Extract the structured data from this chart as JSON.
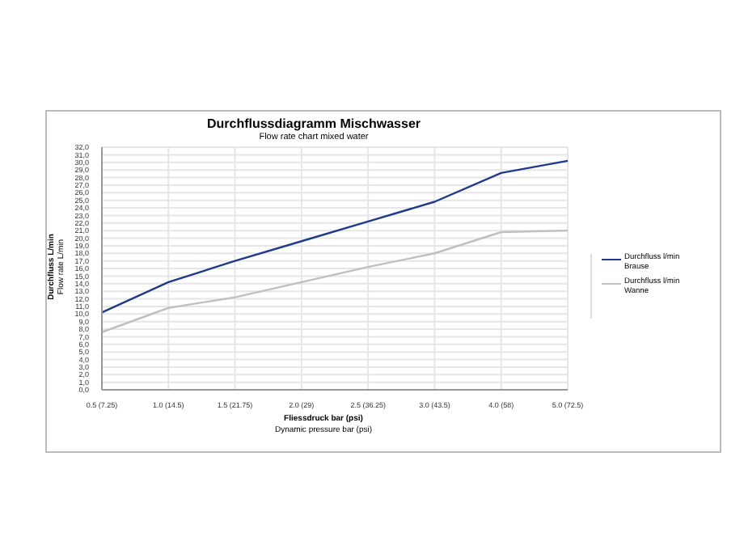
{
  "chart_data": {
    "type": "line",
    "title": "Durchflussdiagramm Mischwasser",
    "subtitle": "Flow rate chart mixed water",
    "xlabel": "Fliessdruck bar (psi)\nDynamic pressure bar (psi)",
    "ylabel": "Durchfluss L/min\nFlow rate L/min",
    "categories": [
      "0.5 (7.25)",
      "1.0 (14.5)",
      "1.5 (21.75)",
      "2.0 (29)",
      "2.5 (36.25)",
      "3.0 (43.5)",
      "4.0 (58)",
      "5.0 (72.5)"
    ],
    "series": [
      {
        "name": "Durchfluss l/min\nBrause",
        "color": "#1f3a8a",
        "values": [
          10.2,
          14.2,
          17,
          19.6,
          22.2,
          24.8,
          28.6,
          30.2
        ]
      },
      {
        "name": "Durchfluss l/min\nWanne",
        "color": "#c0c0c0",
        "values": [
          7.6,
          10.8,
          12.2,
          14.2,
          16.2,
          18,
          20.8,
          21
        ]
      }
    ],
    "ylim": [
      0,
      32
    ],
    "yticks": [
      {
        "value": 0,
        "label": "0,0"
      },
      {
        "value": 1,
        "label": "1,0"
      },
      {
        "value": 2,
        "label": "2,0"
      },
      {
        "value": 3,
        "label": "3,0"
      },
      {
        "value": 4,
        "label": "4,0"
      },
      {
        "value": 5,
        "label": "5,0"
      },
      {
        "value": 6,
        "label": "6,0"
      },
      {
        "value": 7,
        "label": "7,0"
      },
      {
        "value": 8,
        "label": "8,0"
      },
      {
        "value": 9,
        "label": "9,0"
      },
      {
        "value": 10,
        "label": "10,0"
      },
      {
        "value": 11,
        "label": "11,0"
      },
      {
        "value": 12,
        "label": "12,0"
      },
      {
        "value": 13,
        "label": "13,0"
      },
      {
        "value": 14,
        "label": "14,0"
      },
      {
        "value": 15,
        "label": "15,0"
      },
      {
        "value": 16,
        "label": "16,0"
      },
      {
        "value": 17,
        "label": "17,0"
      },
      {
        "value": 18,
        "label": "18,0"
      },
      {
        "value": 19,
        "label": "19,0"
      },
      {
        "value": 20,
        "label": "20,0"
      },
      {
        "value": 21,
        "label": "21,0"
      },
      {
        "value": 22,
        "label": "22,0"
      },
      {
        "value": 23,
        "label": "23,0"
      },
      {
        "value": 24,
        "label": "24,0"
      },
      {
        "value": 25,
        "label": "25,0"
      },
      {
        "value": 26,
        "label": "26,0"
      },
      {
        "value": 27,
        "label": "27,0"
      },
      {
        "value": 28,
        "label": "28,0"
      },
      {
        "value": 29,
        "label": "29,0"
      },
      {
        "value": 30,
        "label": "30,0"
      },
      {
        "value": 31,
        "label": "31,0"
      },
      {
        "value": 32,
        "label": "32,0"
      }
    ],
    "grid": true,
    "legend": "right",
    "marker": "none",
    "line_style": "solid"
  }
}
